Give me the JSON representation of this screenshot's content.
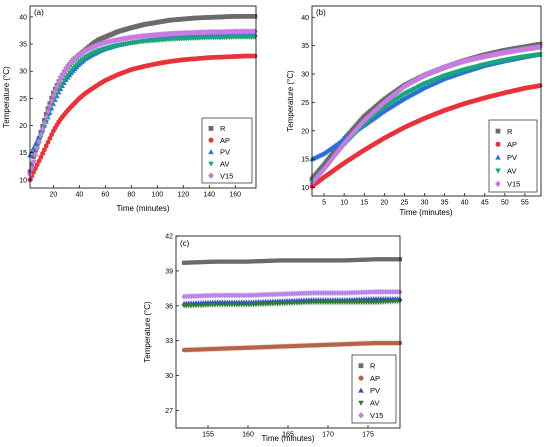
{
  "colors": {
    "R": "#6b6b6b",
    "AP": "#e8333a",
    "PV": "#2a70d8",
    "AV": "#1aa67a",
    "V15": "#c77be3",
    "AP_c": "#b5644a",
    "PV_c": "#3550b8",
    "AV_c": "#2f7a3b",
    "V15_c": "#b886e8"
  },
  "chart_data": [
    {
      "type": "scatter",
      "panel": "(a)",
      "xlabel": "Time (minutes)",
      "ylabel": "Temperature (°C)",
      "xlim": [
        2,
        176
      ],
      "ylim": [
        8.5,
        42
      ],
      "xticks": [
        20,
        40,
        60,
        80,
        100,
        120,
        140,
        160
      ],
      "yticks": [
        10,
        15,
        20,
        25,
        30,
        35,
        40
      ],
      "legend_position": "bottom-right",
      "series": [
        {
          "name": "R",
          "marker": "square",
          "color_key": "R",
          "points": [
            [
              2,
              11.5
            ],
            [
              5,
              14.5
            ],
            [
              10,
              18.5
            ],
            [
              15,
              22.5
            ],
            [
              20,
              26
            ],
            [
              25,
              28.5
            ],
            [
              30,
              30.5
            ],
            [
              35,
              32
            ],
            [
              40,
              33
            ],
            [
              45,
              34
            ],
            [
              50,
              35
            ],
            [
              55,
              35.8
            ],
            [
              60,
              36.3
            ],
            [
              70,
              37.3
            ],
            [
              80,
              38
            ],
            [
              90,
              38.6
            ],
            [
              100,
              39
            ],
            [
              110,
              39.4
            ],
            [
              120,
              39.6
            ],
            [
              130,
              39.8
            ],
            [
              140,
              39.9
            ],
            [
              150,
              40
            ],
            [
              160,
              40.1
            ],
            [
              170,
              40.1
            ],
            [
              176,
              40.1
            ]
          ]
        },
        {
          "name": "AP",
          "marker": "circle",
          "color_key": "AP",
          "points": [
            [
              2,
              10
            ],
            [
              5,
              11.5
            ],
            [
              10,
              14
            ],
            [
              15,
              16.5
            ],
            [
              20,
              19
            ],
            [
              25,
              21
            ],
            [
              30,
              22.5
            ],
            [
              35,
              23.8
            ],
            [
              40,
              25
            ],
            [
              45,
              26
            ],
            [
              50,
              26.8
            ],
            [
              55,
              27.6
            ],
            [
              60,
              28.3
            ],
            [
              70,
              29.4
            ],
            [
              80,
              30.3
            ],
            [
              90,
              30.9
            ],
            [
              100,
              31.4
            ],
            [
              110,
              31.8
            ],
            [
              120,
              32.1
            ],
            [
              130,
              32.3
            ],
            [
              140,
              32.5
            ],
            [
              150,
              32.6
            ],
            [
              160,
              32.7
            ],
            [
              170,
              32.8
            ],
            [
              176,
              32.8
            ]
          ]
        },
        {
          "name": "PV",
          "marker": "triangle-up",
          "color_key": "PV",
          "points": [
            [
              2,
              14.5
            ],
            [
              5,
              16
            ],
            [
              10,
              18.5
            ],
            [
              15,
              21
            ],
            [
              20,
              24
            ],
            [
              25,
              26.5
            ],
            [
              30,
              28.5
            ],
            [
              35,
              30
            ],
            [
              40,
              31.3
            ],
            [
              45,
              32.3
            ],
            [
              50,
              33
            ],
            [
              55,
              33.6
            ],
            [
              60,
              34.1
            ],
            [
              70,
              34.8
            ],
            [
              80,
              35.3
            ],
            [
              90,
              35.7
            ],
            [
              100,
              36
            ],
            [
              110,
              36.2
            ],
            [
              120,
              36.4
            ],
            [
              130,
              36.5
            ],
            [
              140,
              36.6
            ],
            [
              150,
              36.6
            ],
            [
              160,
              36.7
            ],
            [
              170,
              36.7
            ],
            [
              176,
              36.7
            ]
          ]
        },
        {
          "name": "AV",
          "marker": "triangle-down",
          "color_key": "AV",
          "points": [
            [
              2,
              11
            ],
            [
              5,
              13.5
            ],
            [
              10,
              17.5
            ],
            [
              15,
              21
            ],
            [
              20,
              24.5
            ],
            [
              25,
              27
            ],
            [
              30,
              29
            ],
            [
              35,
              30.5
            ],
            [
              40,
              31.7
            ],
            [
              45,
              32.6
            ],
            [
              50,
              33.3
            ],
            [
              55,
              33.8
            ],
            [
              60,
              34.2
            ],
            [
              70,
              34.8
            ],
            [
              80,
              35.2
            ],
            [
              90,
              35.5
            ],
            [
              100,
              35.7
            ],
            [
              110,
              35.9
            ],
            [
              120,
              36
            ],
            [
              130,
              36.1
            ],
            [
              140,
              36.2
            ],
            [
              150,
              36.2
            ],
            [
              160,
              36.3
            ],
            [
              170,
              36.3
            ],
            [
              176,
              36.3
            ]
          ]
        },
        {
          "name": "V15",
          "marker": "diamond",
          "color_key": "V15",
          "points": [
            [
              2,
              11
            ],
            [
              5,
              13.5
            ],
            [
              10,
              18
            ],
            [
              15,
              22
            ],
            [
              20,
              25.5
            ],
            [
              25,
              28.5
            ],
            [
              30,
              30.5
            ],
            [
              35,
              32
            ],
            [
              40,
              33
            ],
            [
              45,
              33.8
            ],
            [
              50,
              34.4
            ],
            [
              55,
              34.9
            ],
            [
              60,
              35.3
            ],
            [
              70,
              35.8
            ],
            [
              80,
              36.2
            ],
            [
              90,
              36.5
            ],
            [
              100,
              36.7
            ],
            [
              110,
              36.9
            ],
            [
              120,
              37
            ],
            [
              130,
              37.1
            ],
            [
              140,
              37.2
            ],
            [
              150,
              37.2
            ],
            [
              160,
              37.3
            ],
            [
              170,
              37.3
            ],
            [
              176,
              37.3
            ]
          ]
        }
      ]
    },
    {
      "type": "scatter",
      "panel": "(b)",
      "xlabel": "Time (minutes)",
      "ylabel": "Temperature (°C)",
      "xlim": [
        2,
        59
      ],
      "ylim": [
        8.5,
        42
      ],
      "xticks": [
        5,
        10,
        15,
        20,
        25,
        30,
        35,
        40,
        45,
        50,
        55
      ],
      "yticks": [
        10,
        15,
        20,
        25,
        30,
        35,
        40
      ],
      "legend_position": "bottom-right",
      "series": [
        {
          "name": "R",
          "marker": "square",
          "color_key": "R",
          "points": [
            [
              2,
              11.5
            ],
            [
              5,
              14
            ],
            [
              10,
              18.5
            ],
            [
              15,
              22.5
            ],
            [
              20,
              25.5
            ],
            [
              25,
              28
            ],
            [
              30,
              29.8
            ],
            [
              35,
              31.2
            ],
            [
              40,
              32.4
            ],
            [
              45,
              33.4
            ],
            [
              50,
              34.2
            ],
            [
              55,
              34.8
            ],
            [
              59,
              35.3
            ]
          ]
        },
        {
          "name": "AP",
          "marker": "circle",
          "color_key": "AP",
          "points": [
            [
              2,
              10.2
            ],
            [
              5,
              11.8
            ],
            [
              10,
              14.3
            ],
            [
              15,
              16.6
            ],
            [
              20,
              18.7
            ],
            [
              25,
              20.6
            ],
            [
              30,
              22.2
            ],
            [
              35,
              23.6
            ],
            [
              40,
              24.8
            ],
            [
              45,
              25.8
            ],
            [
              50,
              26.7
            ],
            [
              55,
              27.5
            ],
            [
              59,
              28
            ]
          ]
        },
        {
          "name": "PV",
          "marker": "triangle-up",
          "color_key": "PV",
          "points": [
            [
              2,
              15
            ],
            [
              5,
              16
            ],
            [
              10,
              18.5
            ],
            [
              15,
              21
            ],
            [
              20,
              23.5
            ],
            [
              25,
              25.7
            ],
            [
              30,
              27.6
            ],
            [
              35,
              29.2
            ],
            [
              40,
              30.4
            ],
            [
              45,
              31.5
            ],
            [
              50,
              32.3
            ],
            [
              55,
              33
            ],
            [
              59,
              33.5
            ]
          ]
        },
        {
          "name": "AV",
          "marker": "triangle-down",
          "color_key": "AV",
          "points": [
            [
              2,
              11
            ],
            [
              5,
              13.2
            ],
            [
              10,
              17.5
            ],
            [
              15,
              21.2
            ],
            [
              20,
              24.2
            ],
            [
              25,
              26.5
            ],
            [
              30,
              28.3
            ],
            [
              35,
              29.7
            ],
            [
              40,
              30.8
            ],
            [
              45,
              31.7
            ],
            [
              50,
              32.5
            ],
            [
              55,
              33.1
            ],
            [
              59,
              33.5
            ]
          ]
        },
        {
          "name": "V15",
          "marker": "diamond",
          "color_key": "V15",
          "points": [
            [
              2,
              10.8
            ],
            [
              5,
              13.2
            ],
            [
              10,
              17.8
            ],
            [
              15,
              21.8
            ],
            [
              20,
              25
            ],
            [
              25,
              27.8
            ],
            [
              30,
              29.8
            ],
            [
              35,
              31.2
            ],
            [
              40,
              32.3
            ],
            [
              45,
              33.1
            ],
            [
              50,
              33.8
            ],
            [
              55,
              34.4
            ],
            [
              59,
              34.8
            ]
          ]
        }
      ]
    },
    {
      "type": "scatter",
      "panel": "(c)",
      "xlabel": "Time (minutes)",
      "ylabel": "Temperature (°C)",
      "xlim": [
        151,
        179
      ],
      "ylim": [
        25.5,
        42
      ],
      "xticks": [
        155,
        160,
        165,
        170,
        175
      ],
      "yticks": [
        27,
        30,
        33,
        36,
        39,
        42
      ],
      "legend_position": "bottom-right",
      "series": [
        {
          "name": "R",
          "marker": "square",
          "color_key": "R",
          "points": [
            [
              152,
              39.7
            ],
            [
              156,
              39.8
            ],
            [
              160,
              39.8
            ],
            [
              164,
              39.9
            ],
            [
              168,
              39.9
            ],
            [
              172,
              39.9
            ],
            [
              176,
              40
            ],
            [
              179,
              40
            ]
          ]
        },
        {
          "name": "AP",
          "marker": "circle",
          "color_key": "AP_c",
          "points": [
            [
              152,
              32.2
            ],
            [
              156,
              32.3
            ],
            [
              160,
              32.4
            ],
            [
              164,
              32.5
            ],
            [
              168,
              32.6
            ],
            [
              172,
              32.7
            ],
            [
              176,
              32.8
            ],
            [
              179,
              32.8
            ]
          ]
        },
        {
          "name": "PV",
          "marker": "triangle-up",
          "color_key": "PV_c",
          "points": [
            [
              152,
              36.2
            ],
            [
              156,
              36.3
            ],
            [
              160,
              36.3
            ],
            [
              164,
              36.4
            ],
            [
              168,
              36.5
            ],
            [
              172,
              36.5
            ],
            [
              176,
              36.6
            ],
            [
              179,
              36.6
            ]
          ]
        },
        {
          "name": "AV",
          "marker": "triangle-down",
          "color_key": "AV_c",
          "points": [
            [
              152,
              36
            ],
            [
              156,
              36.1
            ],
            [
              160,
              36.1
            ],
            [
              164,
              36.2
            ],
            [
              168,
              36.3
            ],
            [
              172,
              36.3
            ],
            [
              176,
              36.3
            ],
            [
              179,
              36.4
            ]
          ]
        },
        {
          "name": "V15",
          "marker": "diamond",
          "color_key": "V15_c",
          "points": [
            [
              152,
              36.8
            ],
            [
              156,
              36.9
            ],
            [
              160,
              36.9
            ],
            [
              164,
              37
            ],
            [
              168,
              37.1
            ],
            [
              172,
              37.1
            ],
            [
              176,
              37.2
            ],
            [
              179,
              37.2
            ]
          ]
        }
      ]
    }
  ]
}
